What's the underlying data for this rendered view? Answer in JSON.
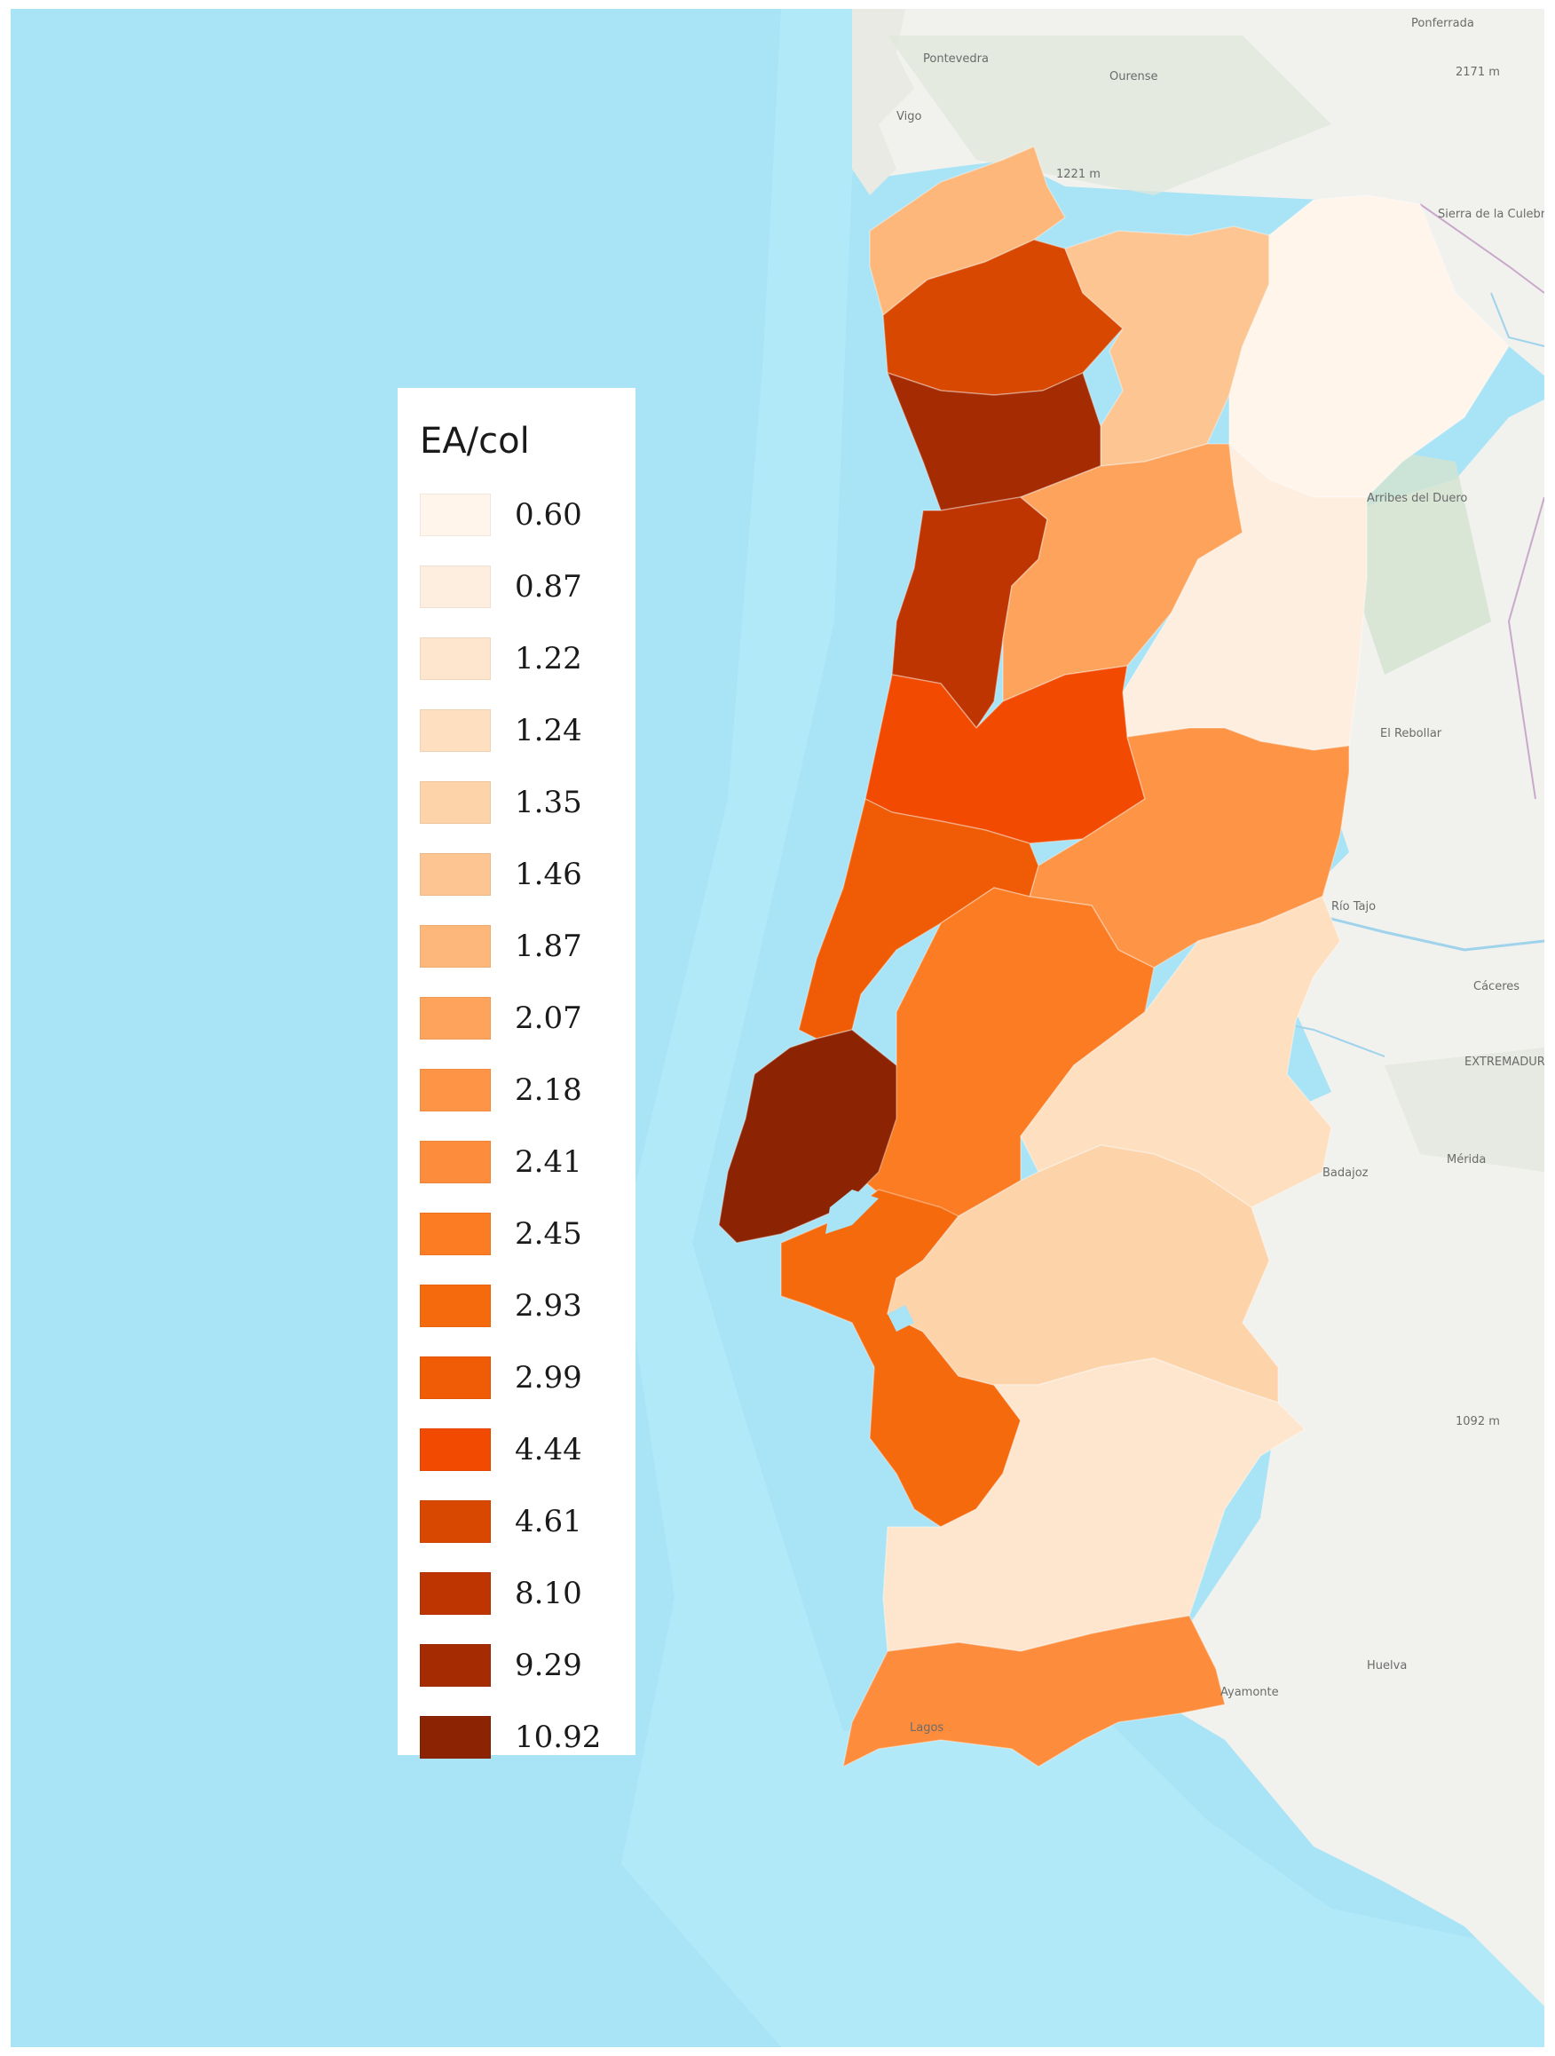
{
  "legend": {
    "title": "EA/col",
    "entries": [
      {
        "label": "0.60",
        "color": "#fff5eb"
      },
      {
        "label": "0.87",
        "color": "#feeedf"
      },
      {
        "label": "1.22",
        "color": "#fee6ce"
      },
      {
        "label": "1.24",
        "color": "#fedfc0"
      },
      {
        "label": "1.35",
        "color": "#fdd3a9"
      },
      {
        "label": "1.46",
        "color": "#fdc591"
      },
      {
        "label": "1.87",
        "color": "#fdb77a"
      },
      {
        "label": "2.07",
        "color": "#fda35c"
      },
      {
        "label": "2.18",
        "color": "#fd9446"
      },
      {
        "label": "2.41",
        "color": "#fd8d3c"
      },
      {
        "label": "2.45",
        "color": "#fb7c22"
      },
      {
        "label": "2.93",
        "color": "#f66a0e"
      },
      {
        "label": "2.99",
        "color": "#ef5c05"
      },
      {
        "label": "4.44",
        "color": "#f24a00"
      },
      {
        "label": "4.61",
        "color": "#d94801"
      },
      {
        "label": "8.10",
        "color": "#bf3502"
      },
      {
        "label": "9.29",
        "color": "#a52b03"
      },
      {
        "label": "10.92",
        "color": "#8c2303"
      }
    ]
  },
  "districts": [
    {
      "id": "viana-do-castelo",
      "value": 1.87
    },
    {
      "id": "braga",
      "value": 4.61
    },
    {
      "id": "vila-real",
      "value": 1.46
    },
    {
      "id": "braganca",
      "value": 0.6
    },
    {
      "id": "porto",
      "value": 9.29
    },
    {
      "id": "aveiro",
      "value": 8.1
    },
    {
      "id": "viseu",
      "value": 2.07
    },
    {
      "id": "guarda",
      "value": 0.87
    },
    {
      "id": "coimbra",
      "value": 4.44
    },
    {
      "id": "castelo-branco",
      "value": 2.18
    },
    {
      "id": "leiria",
      "value": 2.99
    },
    {
      "id": "santarem",
      "value": 2.45
    },
    {
      "id": "lisboa",
      "value": 10.92
    },
    {
      "id": "portalegre",
      "value": 1.24
    },
    {
      "id": "setubal",
      "value": 2.93
    },
    {
      "id": "evora",
      "value": 1.35
    },
    {
      "id": "beja",
      "value": 1.22
    },
    {
      "id": "faro",
      "value": 2.41
    }
  ],
  "basemap": {
    "ocean_color": "#a9e3f6",
    "land_color": "#f1f1ee",
    "place_labels": [
      "Ponferrada",
      "Pontevedra",
      "Ourense",
      "Vigo",
      "2171 m",
      "1221 m",
      "Sierra de la Culebra",
      "Arribes del Duero",
      "El Rebollar",
      "Río Tajo",
      "Cáceres",
      "EXTREMADURA",
      "Badajoz",
      "Mérida",
      "1092 m",
      "Huelva",
      "Ayamonte",
      "Lagos"
    ]
  }
}
